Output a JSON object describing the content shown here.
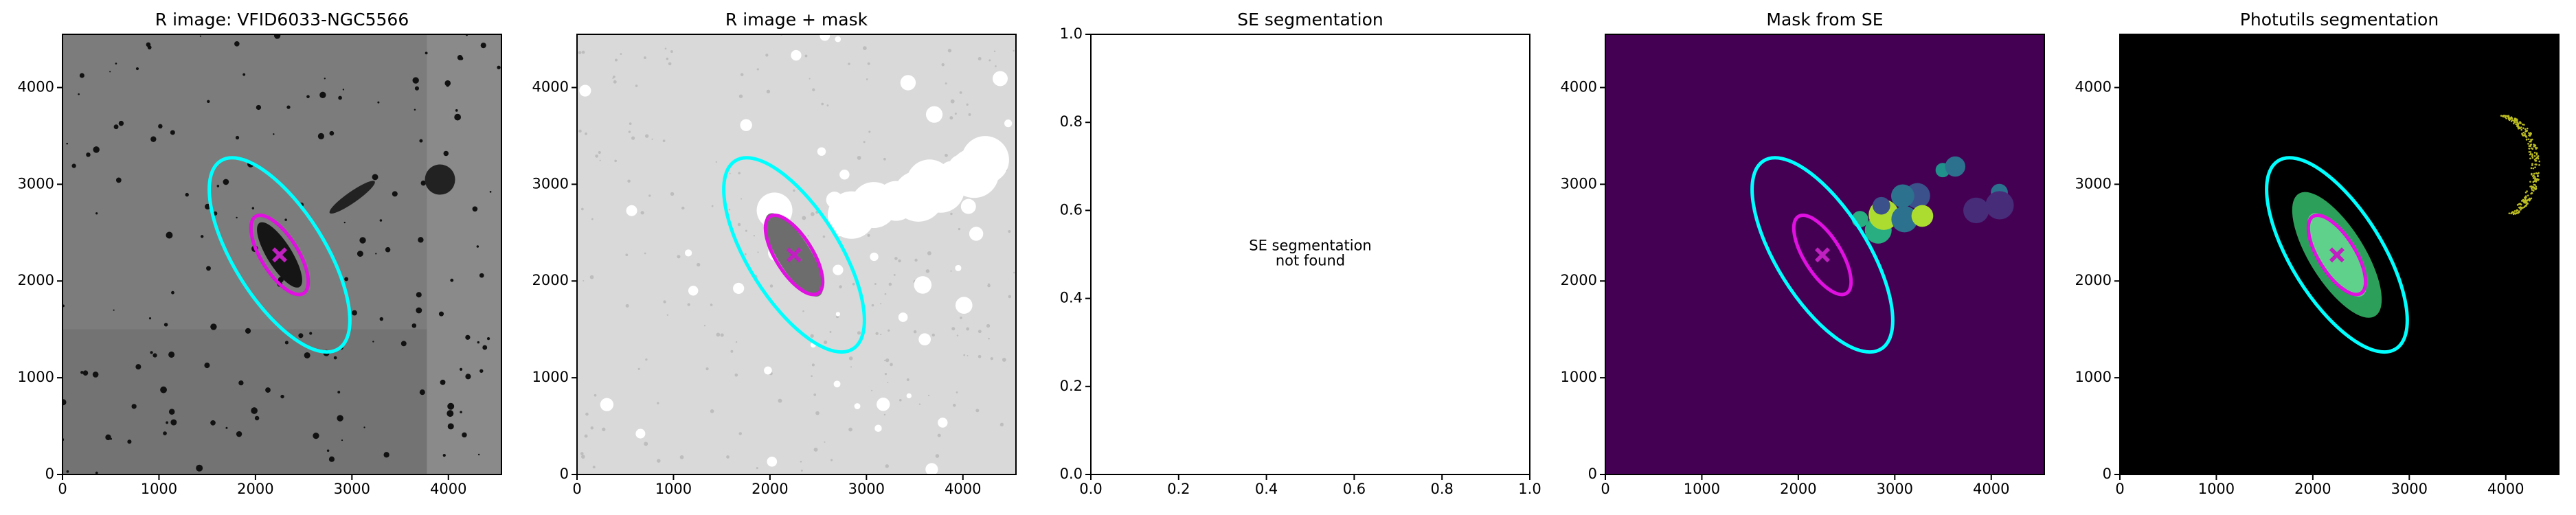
{
  "chart_data": [
    {
      "type": "image",
      "title": "R image: VFID6033-NGC5566",
      "background": "#7c7c7c",
      "xlim": [
        0,
        4550
      ],
      "ylim": [
        0,
        4550
      ],
      "xticks": [
        0,
        1000,
        2000,
        3000,
        4000
      ],
      "yticks": [
        0,
        1000,
        2000,
        3000,
        4000
      ],
      "ellipses": [
        {
          "color": "#00ffff",
          "x": 2250,
          "y": 2270,
          "a": 1150,
          "b": 470,
          "angle": -58
        },
        {
          "color": "#e010e0",
          "x": 2250,
          "y": 2270,
          "a": 470,
          "b": 190,
          "angle": -58
        }
      ],
      "markers": [
        {
          "color": "#c020c0",
          "x": 2250,
          "y": 2270
        }
      ]
    },
    {
      "type": "image",
      "title": "R image + mask",
      "background": "#d9d9d9",
      "xlim": [
        0,
        4550
      ],
      "ylim": [
        0,
        4550
      ],
      "xticks": [
        0,
        1000,
        2000,
        3000,
        4000
      ],
      "yticks": [
        0,
        1000,
        2000,
        3000,
        4000
      ],
      "ellipses": [
        {
          "color": "#00ffff",
          "x": 2250,
          "y": 2270,
          "a": 1150,
          "b": 470,
          "angle": -58
        },
        {
          "color": "#e010e0",
          "x": 2250,
          "y": 2270,
          "a": 470,
          "b": 190,
          "angle": -58
        }
      ],
      "markers": [
        {
          "color": "#c020c0",
          "x": 2250,
          "y": 2270
        }
      ]
    },
    {
      "type": "empty",
      "title": "SE segmentation",
      "annotation": [
        "SE segmentation",
        "not found"
      ],
      "xlim": [
        0,
        1
      ],
      "ylim": [
        0,
        1
      ],
      "xticks": [
        {
          "value": 0,
          "label": "0.0"
        },
        {
          "value": 0.2,
          "label": "0.2"
        },
        {
          "value": 0.4,
          "label": "0.4"
        },
        {
          "value": 0.6,
          "label": "0.6"
        },
        {
          "value": 0.8,
          "label": "0.8"
        },
        {
          "value": 1,
          "label": "1.0"
        }
      ],
      "yticks": [
        {
          "value": 0,
          "label": "0.0"
        },
        {
          "value": 0.2,
          "label": "0.2"
        },
        {
          "value": 0.4,
          "label": "0.4"
        },
        {
          "value": 0.6,
          "label": "0.6"
        },
        {
          "value": 0.8,
          "label": "0.8"
        },
        {
          "value": 1,
          "label": "1.0"
        }
      ]
    },
    {
      "type": "image",
      "title": "Mask from SE",
      "background": "#440154",
      "xlim": [
        0,
        4550
      ],
      "ylim": [
        0,
        4550
      ],
      "xticks": [
        0,
        1000,
        2000,
        3000,
        4000
      ],
      "yticks": [
        0,
        1000,
        2000,
        3000,
        4000
      ],
      "ellipses": [
        {
          "color": "#00ffff",
          "x": 2250,
          "y": 2270,
          "a": 1150,
          "b": 470,
          "angle": -58
        },
        {
          "color": "#e010e0",
          "x": 2250,
          "y": 2270,
          "a": 470,
          "b": 190,
          "angle": -58
        }
      ],
      "markers": [
        {
          "color": "#c020c0",
          "x": 2250,
          "y": 2270
        }
      ]
    },
    {
      "type": "image",
      "title": "Photutils segmentation",
      "background": "#000000",
      "xlim": [
        0,
        4550
      ],
      "ylim": [
        0,
        4550
      ],
      "xticks": [
        0,
        1000,
        2000,
        3000,
        4000
      ],
      "yticks": [
        0,
        1000,
        2000,
        3000,
        4000
      ],
      "ellipses": [
        {
          "color": "#00ffff",
          "x": 2250,
          "y": 2270,
          "a": 1150,
          "b": 470,
          "angle": -58
        },
        {
          "color": "#e010e0",
          "x": 2250,
          "y": 2270,
          "a": 470,
          "b": 190,
          "angle": -58
        }
      ],
      "markers": [
        {
          "color": "#c020c0",
          "x": 2250,
          "y": 2270
        }
      ]
    }
  ]
}
